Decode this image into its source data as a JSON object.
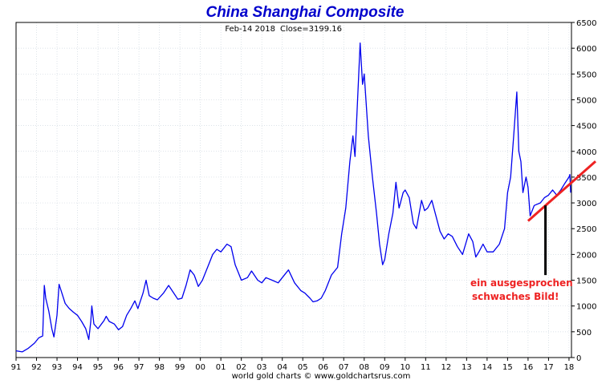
{
  "chart_data": {
    "type": "line",
    "title": "China Shanghai Composite",
    "subtitle_date": "Feb-14  2018",
    "subtitle_close": "Close=3199.16",
    "footer": "world gold charts © www.goldchartsrus.com",
    "annotation_line1": "ein ausgesprochen",
    "annotation_line2": "schwaches Bild!",
    "xlabel": "",
    "ylabel": "",
    "ylim": [
      0,
      6500
    ],
    "xlim": [
      1991.0,
      2018.12
    ],
    "y_ticks": [
      0,
      500,
      1000,
      1500,
      2000,
      2500,
      3000,
      3500,
      4000,
      4500,
      5000,
      5500,
      6000,
      6500
    ],
    "x_ticks": [
      {
        "x": 1991,
        "label": "91"
      },
      {
        "x": 1992,
        "label": "92"
      },
      {
        "x": 1993,
        "label": "93"
      },
      {
        "x": 1994,
        "label": "94"
      },
      {
        "x": 1995,
        "label": "95"
      },
      {
        "x": 1996,
        "label": "96"
      },
      {
        "x": 1997,
        "label": "97"
      },
      {
        "x": 1998,
        "label": "98"
      },
      {
        "x": 1999,
        "label": "99"
      },
      {
        "x": 2000,
        "label": "00"
      },
      {
        "x": 2001,
        "label": "01"
      },
      {
        "x": 2002,
        "label": "02"
      },
      {
        "x": 2003,
        "label": "03"
      },
      {
        "x": 2004,
        "label": "04"
      },
      {
        "x": 2005,
        "label": "05"
      },
      {
        "x": 2006,
        "label": "06"
      },
      {
        "x": 2007,
        "label": "07"
      },
      {
        "x": 2008,
        "label": "08"
      },
      {
        "x": 2009,
        "label": "09"
      },
      {
        "x": 2010,
        "label": "10"
      },
      {
        "x": 2011,
        "label": "11"
      },
      {
        "x": 2012,
        "label": "12"
      },
      {
        "x": 2013,
        "label": "13"
      },
      {
        "x": 2014,
        "label": "14"
      },
      {
        "x": 2015,
        "label": "15"
      },
      {
        "x": 2016,
        "label": "16"
      },
      {
        "x": 2017,
        "label": "17"
      },
      {
        "x": 2018,
        "label": "18"
      }
    ],
    "grid": true,
    "series": [
      {
        "color": "#0000ee",
        "points": [
          [
            1991.0,
            130
          ],
          [
            1991.3,
            110
          ],
          [
            1991.6,
            180
          ],
          [
            1991.9,
            280
          ],
          [
            1992.1,
            380
          ],
          [
            1992.3,
            420
          ],
          [
            1992.38,
            1400
          ],
          [
            1992.45,
            1150
          ],
          [
            1992.6,
            900
          ],
          [
            1992.75,
            550
          ],
          [
            1992.85,
            400
          ],
          [
            1993.0,
            820
          ],
          [
            1993.1,
            1420
          ],
          [
            1993.2,
            1300
          ],
          [
            1993.4,
            1050
          ],
          [
            1993.6,
            950
          ],
          [
            1993.8,
            880
          ],
          [
            1994.0,
            820
          ],
          [
            1994.2,
            700
          ],
          [
            1994.4,
            560
          ],
          [
            1994.55,
            350
          ],
          [
            1994.65,
            700
          ],
          [
            1994.7,
            1000
          ],
          [
            1994.8,
            650
          ],
          [
            1995.0,
            560
          ],
          [
            1995.3,
            720
          ],
          [
            1995.4,
            800
          ],
          [
            1995.55,
            700
          ],
          [
            1995.8,
            650
          ],
          [
            1996.0,
            540
          ],
          [
            1996.2,
            600
          ],
          [
            1996.4,
            820
          ],
          [
            1996.6,
            950
          ],
          [
            1996.8,
            1100
          ],
          [
            1996.95,
            950
          ],
          [
            1997.2,
            1250
          ],
          [
            1997.35,
            1500
          ],
          [
            1997.5,
            1200
          ],
          [
            1997.7,
            1150
          ],
          [
            1997.9,
            1120
          ],
          [
            1998.2,
            1250
          ],
          [
            1998.45,
            1400
          ],
          [
            1998.7,
            1250
          ],
          [
            1998.9,
            1130
          ],
          [
            1999.1,
            1150
          ],
          [
            1999.3,
            1400
          ],
          [
            1999.5,
            1700
          ],
          [
            1999.7,
            1600
          ],
          [
            1999.9,
            1380
          ],
          [
            2000.1,
            1500
          ],
          [
            2000.4,
            1800
          ],
          [
            2000.6,
            2000
          ],
          [
            2000.8,
            2100
          ],
          [
            2001.0,
            2050
          ],
          [
            2001.3,
            2200
          ],
          [
            2001.5,
            2150
          ],
          [
            2001.7,
            1800
          ],
          [
            2001.85,
            1650
          ],
          [
            2002.0,
            1500
          ],
          [
            2002.3,
            1550
          ],
          [
            2002.5,
            1680
          ],
          [
            2002.8,
            1500
          ],
          [
            2003.0,
            1450
          ],
          [
            2003.2,
            1550
          ],
          [
            2003.5,
            1500
          ],
          [
            2003.8,
            1450
          ],
          [
            2004.0,
            1550
          ],
          [
            2004.3,
            1700
          ],
          [
            2004.6,
            1450
          ],
          [
            2004.9,
            1300
          ],
          [
            2005.1,
            1250
          ],
          [
            2005.35,
            1150
          ],
          [
            2005.5,
            1080
          ],
          [
            2005.7,
            1100
          ],
          [
            2005.9,
            1150
          ],
          [
            2006.1,
            1300
          ],
          [
            2006.4,
            1600
          ],
          [
            2006.7,
            1750
          ],
          [
            2006.9,
            2400
          ],
          [
            2007.1,
            2900
          ],
          [
            2007.3,
            3800
          ],
          [
            2007.45,
            4300
          ],
          [
            2007.55,
            3900
          ],
          [
            2007.7,
            5200
          ],
          [
            2007.8,
            6100
          ],
          [
            2007.92,
            5300
          ],
          [
            2008.0,
            5500
          ],
          [
            2008.2,
            4300
          ],
          [
            2008.4,
            3500
          ],
          [
            2008.6,
            2800
          ],
          [
            2008.75,
            2200
          ],
          [
            2008.9,
            1800
          ],
          [
            2009.0,
            1900
          ],
          [
            2009.2,
            2400
          ],
          [
            2009.4,
            2800
          ],
          [
            2009.55,
            3400
          ],
          [
            2009.7,
            2900
          ],
          [
            2009.9,
            3200
          ],
          [
            2010.0,
            3250
          ],
          [
            2010.2,
            3100
          ],
          [
            2010.4,
            2600
          ],
          [
            2010.55,
            2500
          ],
          [
            2010.8,
            3050
          ],
          [
            2010.95,
            2850
          ],
          [
            2011.1,
            2900
          ],
          [
            2011.3,
            3050
          ],
          [
            2011.5,
            2750
          ],
          [
            2011.7,
            2450
          ],
          [
            2011.9,
            2300
          ],
          [
            2012.1,
            2400
          ],
          [
            2012.3,
            2350
          ],
          [
            2012.55,
            2150
          ],
          [
            2012.8,
            2000
          ],
          [
            2012.95,
            2200
          ],
          [
            2013.1,
            2400
          ],
          [
            2013.3,
            2250
          ],
          [
            2013.45,
            1950
          ],
          [
            2013.6,
            2050
          ],
          [
            2013.8,
            2200
          ],
          [
            2014.0,
            2050
          ],
          [
            2014.3,
            2050
          ],
          [
            2014.6,
            2200
          ],
          [
            2014.85,
            2500
          ],
          [
            2015.0,
            3200
          ],
          [
            2015.15,
            3500
          ],
          [
            2015.3,
            4300
          ],
          [
            2015.45,
            5150
          ],
          [
            2015.55,
            4000
          ],
          [
            2015.65,
            3800
          ],
          [
            2015.75,
            3200
          ],
          [
            2015.9,
            3500
          ],
          [
            2016.0,
            3300
          ],
          [
            2016.1,
            2750
          ],
          [
            2016.3,
            2950
          ],
          [
            2016.6,
            3000
          ],
          [
            2016.8,
            3100
          ],
          [
            2017.0,
            3150
          ],
          [
            2017.2,
            3250
          ],
          [
            2017.4,
            3150
          ],
          [
            2017.6,
            3250
          ],
          [
            2017.8,
            3380
          ],
          [
            2018.0,
            3500
          ],
          [
            2018.04,
            3550
          ],
          [
            2018.08,
            3199
          ]
        ]
      }
    ],
    "trendline": {
      "color": "#ee2222",
      "x0": 2016.0,
      "y0": 2650,
      "x1": 2018.12,
      "y1": 3650
    },
    "marker_line": {
      "x": 2016.85,
      "y_top": 2950,
      "y_bottom": 1600
    }
  }
}
